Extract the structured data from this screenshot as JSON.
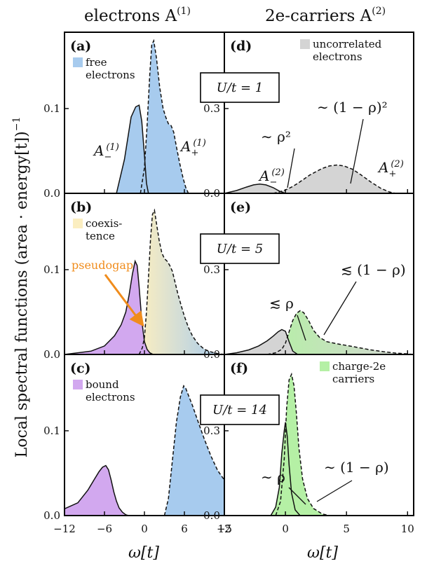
{
  "figure": {
    "left_column_title": "electrons A",
    "left_column_title_sup": "(1)",
    "right_column_title": "2e-carriers A",
    "right_column_title_sup": "(2)",
    "ylabel": "Local spectral functions (area · energy[t])",
    "ylabel_sup": "−1",
    "xlabel": "ω[t]"
  },
  "u_labels": [
    "U/t = 1",
    "U/t = 5",
    "U/t = 14"
  ],
  "colors": {
    "free": "#a7cbee",
    "coexistence": "#fbeec0",
    "bound": "#d2a8ef",
    "uncorrelated": "#d4d4d4",
    "charge2e": "#b5f0a5",
    "pseudogap_arrow": "#f08c1c"
  },
  "chart_data": [
    {
      "type": "area",
      "panel": "(a)",
      "xlim": [
        -12,
        12
      ],
      "ylim": [
        0,
        0.19
      ],
      "xticks": [
        "−12",
        "−6",
        "0",
        "6",
        "12"
      ],
      "yticks": [
        "0.0",
        "0.1"
      ],
      "ytick_values": [
        0,
        0.1
      ],
      "legend": [
        {
          "label_lines": [
            "free",
            "electrons"
          ],
          "color": "free"
        }
      ],
      "annotations": [
        {
          "text": "A",
          "sub": "−",
          "sup": "(1)"
        },
        {
          "text": "A",
          "sub": "+",
          "sup": "(1)"
        }
      ],
      "series": [
        {
          "name": "A−(1)",
          "style": "solid",
          "x": [
            -4.2,
            -3.0,
            -2.0,
            -1.3,
            -0.8,
            -0.4,
            0.0,
            0.3,
            0.6
          ],
          "y": [
            0.0,
            0.04,
            0.09,
            0.102,
            0.104,
            0.085,
            0.045,
            0.012,
            0.0
          ]
        },
        {
          "name": "A+(1)",
          "style": "dashed",
          "x": [
            -0.6,
            0.0,
            0.4,
            0.8,
            1.1,
            1.4,
            1.8,
            2.3,
            2.8,
            3.2,
            3.6,
            4.0,
            4.4,
            4.8,
            5.3,
            5.8,
            6.2,
            6.6
          ],
          "y": [
            0.0,
            0.03,
            0.08,
            0.14,
            0.175,
            0.18,
            0.16,
            0.125,
            0.1,
            0.09,
            0.082,
            0.08,
            0.072,
            0.055,
            0.035,
            0.018,
            0.007,
            0.0
          ]
        }
      ]
    },
    {
      "type": "area",
      "panel": "(b)",
      "xlim": [
        -12,
        12
      ],
      "ylim": [
        0,
        0.19
      ],
      "xticks": [
        "−12",
        "−6",
        "0",
        "6",
        "12"
      ],
      "yticks": [
        "0.0",
        "0.1"
      ],
      "ytick_values": [
        0,
        0.1
      ],
      "legend": [
        {
          "label_lines": [
            "coexis-",
            "tence"
          ],
          "color": "coexistence"
        }
      ],
      "annotations": [
        {
          "text": "pseudogap"
        }
      ],
      "series": [
        {
          "name": "A−(1)",
          "style": "solid",
          "x": [
            -12.0,
            -8.0,
            -6.0,
            -4.5,
            -3.5,
            -2.8,
            -2.3,
            -1.8,
            -1.4,
            -1.1,
            -0.8,
            -0.4,
            0.0,
            0.4,
            0.8,
            1.3
          ],
          "y": [
            0.0,
            0.004,
            0.01,
            0.022,
            0.035,
            0.05,
            0.07,
            0.095,
            0.11,
            0.105,
            0.08,
            0.04,
            0.015,
            0.006,
            0.002,
            0.0
          ]
        },
        {
          "name": "A+(1)",
          "style": "dashed",
          "x": [
            -0.8,
            -0.3,
            0.0,
            0.3,
            0.6,
            0.9,
            1.2,
            1.5,
            1.8,
            2.2,
            2.6,
            3.0,
            3.4,
            3.8,
            4.2,
            4.6,
            5.0,
            5.5,
            6.0,
            6.6,
            7.2,
            8.0,
            9.0,
            10.0,
            11.0,
            12.0
          ],
          "y": [
            0.0,
            0.008,
            0.02,
            0.05,
            0.09,
            0.135,
            0.165,
            0.17,
            0.155,
            0.135,
            0.12,
            0.113,
            0.11,
            0.105,
            0.098,
            0.085,
            0.072,
            0.058,
            0.045,
            0.032,
            0.022,
            0.013,
            0.006,
            0.003,
            0.001,
            0.0
          ]
        }
      ]
    },
    {
      "type": "area",
      "panel": "(c)",
      "xlim": [
        -12,
        12
      ],
      "ylim": [
        0,
        0.19
      ],
      "xticks": [
        "−12",
        "−6",
        "0",
        "6",
        "12"
      ],
      "yticks": [
        "0.0",
        "0.1"
      ],
      "ytick_values": [
        0,
        0.1
      ],
      "legend": [
        {
          "label_lines": [
            "bound",
            "electrons"
          ],
          "color": "bound"
        }
      ],
      "annotations": [],
      "series": [
        {
          "name": "A−(1)",
          "style": "solid",
          "x": [
            -12.0,
            -10.0,
            -8.5,
            -7.5,
            -6.8,
            -6.3,
            -5.8,
            -5.4,
            -5.0,
            -4.6,
            -4.2,
            -3.8,
            -3.3,
            -2.8,
            -2.4
          ],
          "y": [
            0.008,
            0.015,
            0.03,
            0.043,
            0.052,
            0.057,
            0.059,
            0.054,
            0.042,
            0.028,
            0.017,
            0.009,
            0.004,
            0.001,
            0.0
          ]
        },
        {
          "name": "A+(1)",
          "style": "dashed",
          "x": [
            3.0,
            3.6,
            4.2,
            4.8,
            5.4,
            5.9,
            6.2,
            6.6,
            7.2,
            8.0,
            9.0,
            10.0,
            11.0,
            12.0
          ],
          "y": [
            0.0,
            0.02,
            0.065,
            0.11,
            0.14,
            0.153,
            0.15,
            0.142,
            0.13,
            0.112,
            0.09,
            0.07,
            0.053,
            0.042
          ]
        }
      ]
    },
    {
      "type": "area",
      "panel": "(d)",
      "xlim": [
        -5,
        10.5
      ],
      "ylim": [
        0,
        0.57
      ],
      "xticks": [
        "−5",
        "0",
        "5",
        "10"
      ],
      "yticks": [
        "0.0",
        "0.3"
      ],
      "ytick_values": [
        0,
        0.3
      ],
      "legend": [
        {
          "label_lines": [
            "uncorrelated",
            "electrons"
          ],
          "color": "uncorrelated"
        }
      ],
      "annotations": [
        {
          "text": "∼ ρ²"
        },
        {
          "text": "∼ (1 − ρ)²"
        },
        {
          "text": "A",
          "sub": "−",
          "sup": "(2)"
        },
        {
          "text": "A",
          "sub": "+",
          "sup": "(2)"
        }
      ],
      "series": [
        {
          "name": "A−(2)",
          "style": "solid",
          "x": [
            -5.0,
            -4.0,
            -3.2,
            -2.6,
            -2.1,
            -1.6,
            -1.0,
            -0.5,
            0.0
          ],
          "y": [
            0.0,
            0.01,
            0.022,
            0.03,
            0.033,
            0.03,
            0.02,
            0.008,
            0.0
          ]
        },
        {
          "name": "A+(2)",
          "style": "dashed",
          "x": [
            -1.0,
            -0.5,
            0.0,
            0.5,
            1.0,
            2.0,
            3.0,
            3.6,
            4.2,
            4.8,
            5.5,
            6.2,
            7.0,
            7.8,
            8.5,
            9.0
          ],
          "y": [
            0.0,
            0.005,
            0.012,
            0.022,
            0.035,
            0.065,
            0.088,
            0.097,
            0.1,
            0.097,
            0.085,
            0.065,
            0.04,
            0.018,
            0.005,
            0.0
          ]
        }
      ]
    },
    {
      "type": "area",
      "panel": "(e)",
      "xlim": [
        -5,
        10.5
      ],
      "ylim": [
        0,
        0.57
      ],
      "xticks": [
        "−5",
        "0",
        "5",
        "10"
      ],
      "yticks": [
        "0.0",
        "0.3"
      ],
      "ytick_values": [
        0,
        0.3
      ],
      "legend": [],
      "annotations": [
        {
          "text": "≲ ρ"
        },
        {
          "text": "≲ (1 − ρ)"
        }
      ],
      "series": [
        {
          "name": "A−(2)",
          "style": "solid",
          "x": [
            -5.0,
            -4.0,
            -3.0,
            -2.2,
            -1.5,
            -1.0,
            -0.6,
            -0.3,
            0.0,
            0.3,
            0.6,
            1.0
          ],
          "y": [
            0.0,
            0.006,
            0.016,
            0.03,
            0.048,
            0.065,
            0.08,
            0.088,
            0.082,
            0.045,
            0.012,
            0.0
          ]
        },
        {
          "name": "A+(2)",
          "style": "dashed",
          "x": [
            -1.5,
            -0.8,
            -0.3,
            0.0,
            0.3,
            0.6,
            0.9,
            1.2,
            1.5,
            1.9,
            2.3,
            2.8,
            3.4,
            4.2,
            5.0,
            6.0,
            7.0,
            8.0,
            9.0,
            10.0,
            10.5
          ],
          "y": [
            0.0,
            0.006,
            0.018,
            0.04,
            0.08,
            0.12,
            0.145,
            0.155,
            0.148,
            0.12,
            0.085,
            0.06,
            0.045,
            0.038,
            0.032,
            0.024,
            0.016,
            0.01,
            0.005,
            0.002,
            0.0
          ]
        }
      ]
    },
    {
      "type": "area",
      "panel": "(f)",
      "xlim": [
        -5,
        10.5
      ],
      "ylim": [
        0,
        0.57
      ],
      "xticks": [
        "−5",
        "0",
        "5",
        "10"
      ],
      "yticks": [
        "0.0",
        "0.3"
      ],
      "ytick_values": [
        0,
        0.3
      ],
      "legend": [
        {
          "label_lines": [
            "charge-2e",
            "carriers"
          ],
          "color": "charge2e"
        }
      ],
      "annotations": [
        {
          "text": "∼ ρ"
        },
        {
          "text": "∼ (1 − ρ)"
        }
      ],
      "series": [
        {
          "name": "A−(2)",
          "style": "solid",
          "x": [
            -1.2,
            -0.8,
            -0.5,
            -0.3,
            -0.1,
            0.0,
            0.15,
            0.3,
            0.5,
            0.8,
            1.2
          ],
          "y": [
            0.0,
            0.03,
            0.1,
            0.22,
            0.3,
            0.33,
            0.28,
            0.18,
            0.08,
            0.02,
            0.0
          ]
        },
        {
          "name": "A+(2)",
          "style": "dashed",
          "x": [
            -0.8,
            -0.4,
            -0.1,
            0.1,
            0.3,
            0.5,
            0.7,
            0.9,
            1.1,
            1.4,
            1.8,
            2.3,
            3.0,
            3.6
          ],
          "y": [
            0.0,
            0.05,
            0.2,
            0.38,
            0.48,
            0.5,
            0.46,
            0.36,
            0.24,
            0.13,
            0.06,
            0.025,
            0.006,
            0.0
          ]
        }
      ]
    }
  ]
}
